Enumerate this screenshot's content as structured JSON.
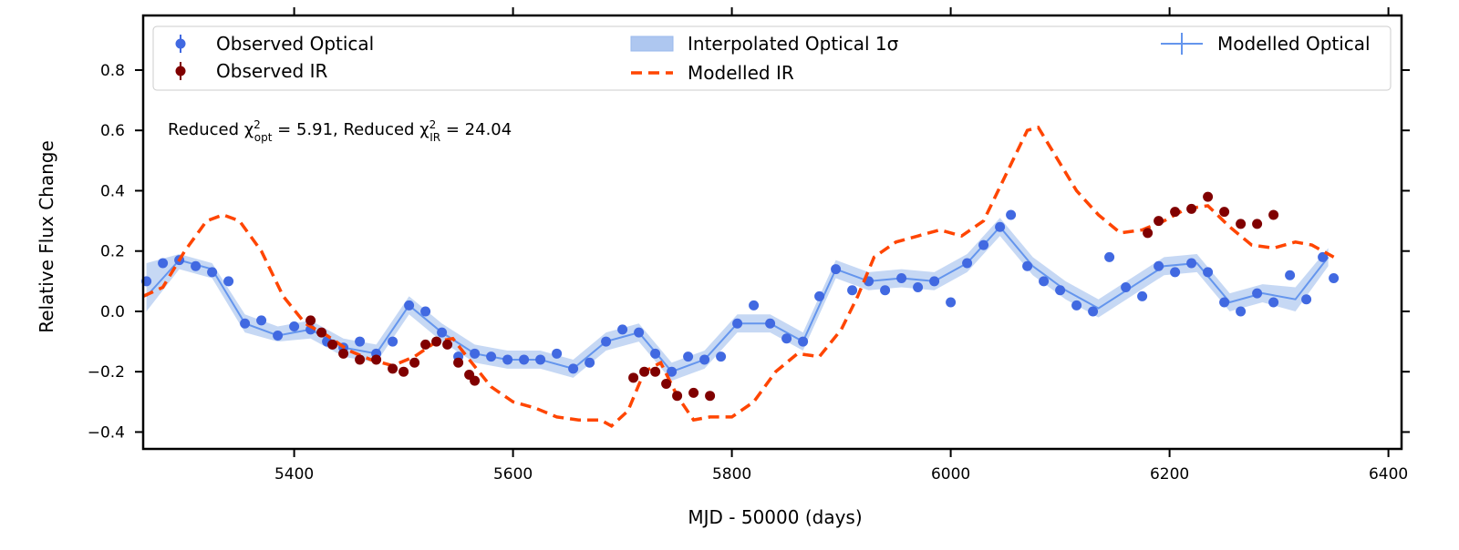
{
  "chart_data": {
    "type": "line",
    "xlabel": "MJD - 50000 (days)",
    "ylabel": "Relative Flux Change",
    "xlim": [
      5262,
      6412
    ],
    "ylim": [
      -0.456,
      0.981
    ],
    "xticks": [
      5400,
      5600,
      5800,
      6000,
      6200,
      6400
    ],
    "yticks": [
      {
        "value": -0.4,
        "label": "−0.4"
      },
      {
        "value": -0.2,
        "label": "−0.2"
      },
      {
        "value": 0,
        "label": "0.0"
      },
      {
        "value": 0.2,
        "label": "0.2"
      },
      {
        "value": 0.4,
        "label": "0.4"
      },
      {
        "value": 0.6,
        "label": "0.6"
      },
      {
        "value": 0.8,
        "label": "0.8"
      }
    ],
    "annotation": [
      "Reduced χ",
      "2",
      "opt",
      " = 5.91, Reduced χ",
      "2",
      "IR",
      " = 24.04"
    ],
    "legend": "top",
    "series": [
      {
        "name": "Observed Optical",
        "style": "markers",
        "color": "#4169e1",
        "x": [
          5265,
          5280,
          5295,
          5310,
          5325,
          5340,
          5355,
          5370,
          5385,
          5400,
          5415,
          5430,
          5445,
          5460,
          5475,
          5490,
          5505,
          5520,
          5535,
          5550,
          5565,
          5580,
          5595,
          5610,
          5625,
          5640,
          5655,
          5670,
          5685,
          5700,
          5715,
          5730,
          5745,
          5760,
          5775,
          5790,
          5805,
          5820,
          5835,
          5850,
          5865,
          5880,
          5895,
          5910,
          5925,
          5940,
          5955,
          5970,
          5985,
          6000,
          6015,
          6030,
          6045,
          6055,
          6070,
          6085,
          6100,
          6115,
          6130,
          6145,
          6160,
          6175,
          6190,
          6205,
          6220,
          6235,
          6250,
          6265,
          6280,
          6295,
          6310,
          6325,
          6340,
          6350
        ],
        "values": [
          0.1,
          0.16,
          0.17,
          0.15,
          0.13,
          0.1,
          -0.04,
          -0.03,
          -0.08,
          -0.05,
          -0.06,
          -0.1,
          -0.12,
          -0.1,
          -0.14,
          -0.1,
          0.02,
          0.0,
          -0.07,
          -0.15,
          -0.14,
          -0.15,
          -0.16,
          -0.16,
          -0.16,
          -0.14,
          -0.19,
          -0.17,
          -0.1,
          -0.06,
          -0.07,
          -0.14,
          -0.2,
          -0.15,
          -0.16,
          -0.15,
          -0.04,
          0.02,
          -0.04,
          -0.09,
          -0.1,
          0.05,
          0.14,
          0.07,
          0.1,
          0.07,
          0.11,
          0.08,
          0.1,
          0.03,
          0.16,
          0.22,
          0.28,
          0.32,
          0.15,
          0.1,
          0.07,
          0.02,
          0.0,
          0.18,
          0.08,
          0.05,
          0.15,
          0.13,
          0.16,
          0.13,
          0.03,
          0.0,
          0.06,
          0.03,
          0.12,
          0.04,
          0.18,
          0.11
        ]
      },
      {
        "name": "Interpolated Optical 1σ",
        "style": "band",
        "color": "#aec7f0",
        "x": [
          5265,
          5295,
          5325,
          5355,
          5385,
          5415,
          5445,
          5475,
          5505,
          5535,
          5565,
          5595,
          5625,
          5655,
          5685,
          5715,
          5745,
          5775,
          5805,
          5835,
          5865,
          5895,
          5925,
          5955,
          5985,
          6015,
          6045,
          6075,
          6105,
          6135,
          6165,
          6195,
          6225,
          6255,
          6285,
          6315,
          6345
        ],
        "upper": [
          0.16,
          0.19,
          0.16,
          -0.01,
          -0.05,
          -0.03,
          -0.09,
          -0.11,
          0.05,
          -0.04,
          -0.11,
          -0.13,
          -0.13,
          -0.16,
          -0.07,
          -0.04,
          -0.17,
          -0.13,
          -0.01,
          -0.01,
          -0.07,
          0.17,
          0.13,
          0.14,
          0.13,
          0.19,
          0.31,
          0.18,
          0.1,
          0.04,
          0.11,
          0.18,
          0.19,
          0.06,
          0.09,
          0.08,
          0.21
        ],
        "lower": [
          0.0,
          0.14,
          0.11,
          -0.07,
          -0.1,
          -0.09,
          -0.15,
          -0.17,
          -0.01,
          -0.1,
          -0.17,
          -0.19,
          -0.19,
          -0.22,
          -0.13,
          -0.1,
          -0.23,
          -0.19,
          -0.07,
          -0.07,
          -0.13,
          0.11,
          0.07,
          0.08,
          0.07,
          0.13,
          0.25,
          0.12,
          0.04,
          -0.02,
          0.05,
          0.12,
          0.13,
          0.0,
          0.03,
          0.0,
          0.15
        ]
      },
      {
        "name": "Modelled Optical",
        "style": "line",
        "color": "#6495ed",
        "x": [
          5265,
          5295,
          5325,
          5355,
          5385,
          5415,
          5445,
          5475,
          5505,
          5535,
          5565,
          5595,
          5625,
          5655,
          5685,
          5715,
          5745,
          5775,
          5805,
          5835,
          5865,
          5895,
          5925,
          5955,
          5985,
          6015,
          6045,
          6075,
          6105,
          6135,
          6165,
          6195,
          6225,
          6255,
          6285,
          6315,
          6345
        ],
        "values": [
          0.05,
          0.17,
          0.14,
          -0.04,
          -0.08,
          -0.06,
          -0.12,
          -0.14,
          0.02,
          -0.07,
          -0.14,
          -0.16,
          -0.16,
          -0.19,
          -0.1,
          -0.07,
          -0.2,
          -0.16,
          -0.04,
          -0.04,
          -0.1,
          0.14,
          0.1,
          0.11,
          0.1,
          0.16,
          0.28,
          0.15,
          0.07,
          0.01,
          0.08,
          0.15,
          0.16,
          0.03,
          0.06,
          0.04,
          0.18
        ]
      },
      {
        "name": "Observed IR",
        "style": "markers",
        "color": "#800000",
        "x": [
          5415,
          5425,
          5435,
          5445,
          5460,
          5475,
          5490,
          5500,
          5510,
          5520,
          5530,
          5540,
          5550,
          5560,
          5565,
          5710,
          5720,
          5730,
          5740,
          5750,
          5765,
          5780,
          6180,
          6190,
          6205,
          6220,
          6235,
          6250,
          6265,
          6280,
          6295
        ],
        "values": [
          -0.03,
          -0.07,
          -0.11,
          -0.14,
          -0.16,
          -0.16,
          -0.19,
          -0.2,
          -0.17,
          -0.11,
          -0.1,
          -0.11,
          -0.17,
          -0.21,
          -0.23,
          -0.22,
          -0.2,
          -0.2,
          -0.24,
          -0.28,
          -0.27,
          -0.28,
          0.26,
          0.3,
          0.33,
          0.34,
          0.38,
          0.33,
          0.29,
          0.29,
          0.32
        ]
      },
      {
        "name": "Modelled IR",
        "style": "dashed",
        "color": "#ff4500",
        "x": [
          5262,
          5280,
          5300,
          5320,
          5335,
          5350,
          5370,
          5390,
          5410,
          5430,
          5450,
          5470,
          5490,
          5510,
          5530,
          5545,
          5560,
          5580,
          5600,
          5620,
          5640,
          5660,
          5680,
          5690,
          5705,
          5720,
          5735,
          5750,
          5765,
          5780,
          5800,
          5820,
          5840,
          5860,
          5880,
          5900,
          5915,
          5930,
          5950,
          5970,
          5990,
          6010,
          6030,
          6050,
          6070,
          6080,
          6095,
          6115,
          6135,
          6155,
          6175,
          6195,
          6215,
          6235,
          6255,
          6275,
          6295,
          6315,
          6330,
          6350
        ],
        "values": [
          0.05,
          0.08,
          0.2,
          0.3,
          0.32,
          0.3,
          0.2,
          0.05,
          -0.04,
          -0.08,
          -0.13,
          -0.16,
          -0.18,
          -0.15,
          -0.1,
          -0.09,
          -0.16,
          -0.25,
          -0.3,
          -0.32,
          -0.35,
          -0.36,
          -0.36,
          -0.38,
          -0.33,
          -0.2,
          -0.17,
          -0.28,
          -0.36,
          -0.35,
          -0.35,
          -0.3,
          -0.2,
          -0.14,
          -0.15,
          -0.06,
          0.05,
          0.18,
          0.23,
          0.25,
          0.27,
          0.25,
          0.3,
          0.45,
          0.6,
          0.61,
          0.52,
          0.4,
          0.32,
          0.26,
          0.27,
          0.3,
          0.34,
          0.35,
          0.28,
          0.22,
          0.21,
          0.23,
          0.22,
          0.18
        ]
      }
    ]
  }
}
